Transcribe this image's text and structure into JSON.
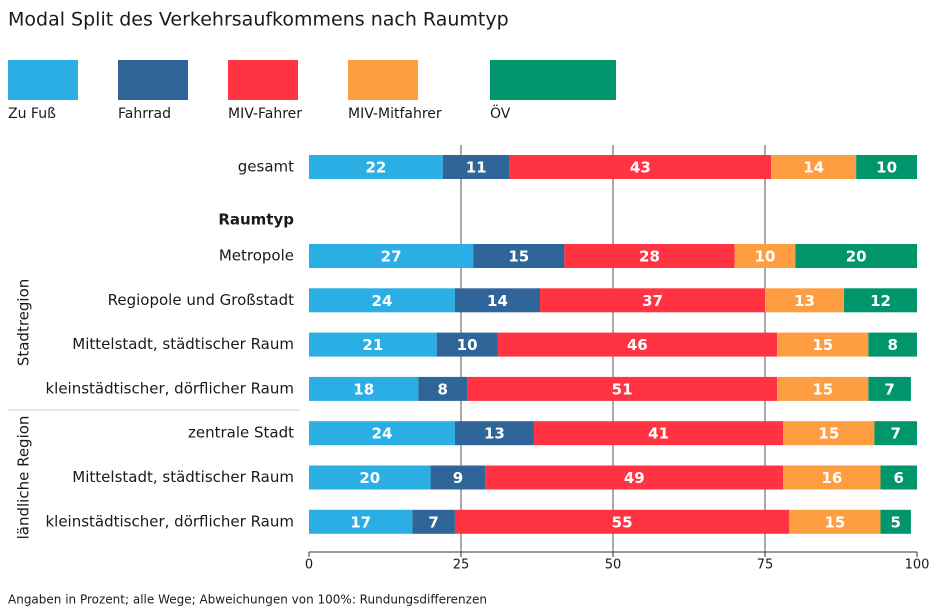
{
  "chart_data": {
    "type": "stacked_bar_horizontal",
    "title": "Modal Split des Verkehrsaufkommens nach Raumtyp",
    "section_label": "Raumtyp",
    "groups": [
      {
        "name": "Stadtregion",
        "from": 1,
        "to": 4
      },
      {
        "name": "ländliche Region",
        "from": 5,
        "to": 7
      }
    ],
    "categories": [
      "gesamt",
      "Metropole",
      "Regiopole und Großstadt",
      "Mittelstadt, städtischer Raum",
      "kleinstädtischer, dörflicher Raum",
      "zentrale Stadt",
      "Mittelstadt, städtischer Raum",
      "kleinstädtischer, dörflicher Raum"
    ],
    "series": [
      {
        "name": "Zu Fuß",
        "color": "#2aaee3",
        "values": [
          22,
          27,
          24,
          21,
          18,
          24,
          20,
          17
        ]
      },
      {
        "name": "Fahrrad",
        "color": "#2f6598",
        "values": [
          11,
          15,
          14,
          10,
          8,
          13,
          9,
          7
        ]
      },
      {
        "name": "MIV-Fahrer",
        "color": "#ff3341",
        "values": [
          43,
          28,
          37,
          46,
          51,
          41,
          49,
          55
        ]
      },
      {
        "name": "MIV-Mitfahrer",
        "color": "#ff9d42",
        "values": [
          14,
          10,
          13,
          15,
          15,
          15,
          16,
          15
        ]
      },
      {
        "name": "ÖV",
        "color": "#00956a",
        "values": [
          10,
          20,
          12,
          8,
          7,
          7,
          6,
          5
        ]
      }
    ],
    "xlim": [
      0,
      100
    ],
    "xticks": [
      0,
      25,
      50,
      75,
      100
    ],
    "grid": true,
    "footnote": "Angaben in Prozent; alle Wege; Abweichungen von 100%: Rundungsdifferenzen"
  }
}
